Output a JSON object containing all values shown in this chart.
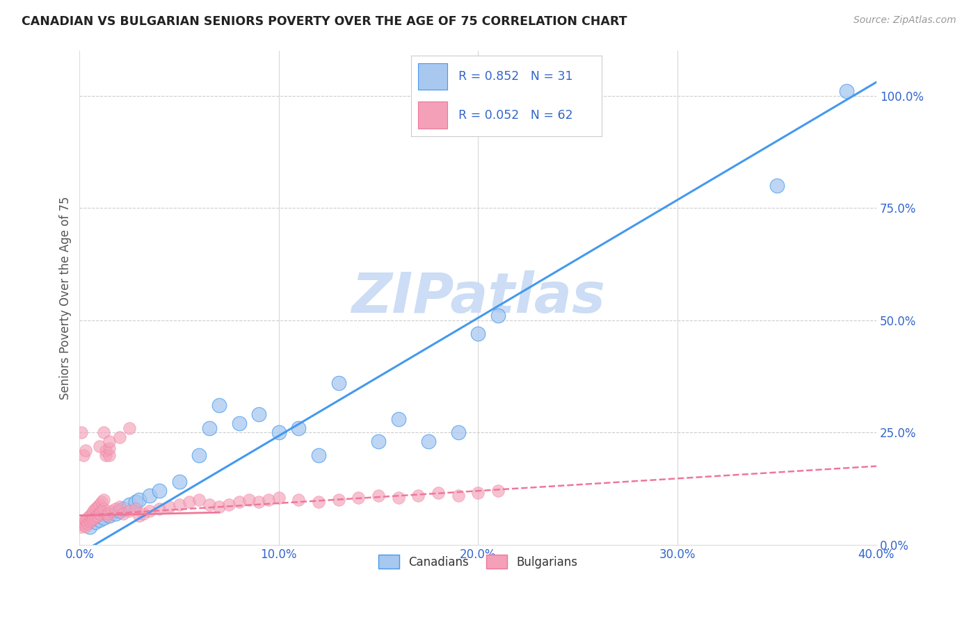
{
  "title": "CANADIAN VS BULGARIAN SENIORS POVERTY OVER THE AGE OF 75 CORRELATION CHART",
  "source": "Source: ZipAtlas.com",
  "ylabel": "Seniors Poverty Over the Age of 75",
  "xlim": [
    0.0,
    0.4
  ],
  "ylim": [
    0.0,
    1.1
  ],
  "xticks": [
    0.0,
    0.1,
    0.2,
    0.3,
    0.4
  ],
  "xticklabels": [
    "0.0%",
    "10.0%",
    "20.0%",
    "30.0%",
    "40.0%"
  ],
  "yticks_right": [
    0.0,
    0.25,
    0.5,
    0.75,
    1.0
  ],
  "yticklabels_right": [
    "0.0%",
    "25.0%",
    "50.0%",
    "75.0%",
    "100.0%"
  ],
  "canadian_color": "#a8c8f0",
  "bulgarian_color": "#f4a0b8",
  "trend_canadian_color": "#4499ee",
  "trend_bulgarian_color": "#ee7799",
  "legend_text_color": "#3366cc",
  "watermark": "ZIPatlas",
  "watermark_color": "#ccddf5",
  "R_canadian": 0.852,
  "N_canadian": 31,
  "R_bulgarian": 0.052,
  "N_bulgarian": 62,
  "canadian_trend_x0": 0.0,
  "canadian_trend_y0": -0.02,
  "canadian_trend_x1": 0.4,
  "canadian_trend_y1": 1.03,
  "bulgarian_trend_x0": 0.0,
  "bulgarian_trend_y0": 0.065,
  "bulgarian_trend_x1": 0.4,
  "bulgarian_trend_y1": 0.175,
  "canadian_x": [
    0.005,
    0.008,
    0.01,
    0.012,
    0.015,
    0.018,
    0.02,
    0.022,
    0.025,
    0.028,
    0.03,
    0.035,
    0.04,
    0.05,
    0.06,
    0.065,
    0.07,
    0.08,
    0.09,
    0.1,
    0.11,
    0.12,
    0.13,
    0.15,
    0.16,
    0.175,
    0.19,
    0.2,
    0.21,
    0.35,
    0.385
  ],
  "canadian_y": [
    0.04,
    0.05,
    0.055,
    0.06,
    0.065,
    0.07,
    0.075,
    0.08,
    0.09,
    0.095,
    0.1,
    0.11,
    0.12,
    0.14,
    0.2,
    0.26,
    0.31,
    0.27,
    0.29,
    0.25,
    0.26,
    0.2,
    0.36,
    0.23,
    0.28,
    0.23,
    0.25,
    0.47,
    0.51,
    0.8,
    1.01
  ],
  "bulgarian_x": [
    0.001,
    0.002,
    0.002,
    0.003,
    0.003,
    0.004,
    0.004,
    0.005,
    0.005,
    0.006,
    0.006,
    0.007,
    0.007,
    0.008,
    0.008,
    0.009,
    0.009,
    0.01,
    0.01,
    0.011,
    0.011,
    0.012,
    0.012,
    0.013,
    0.013,
    0.014,
    0.014,
    0.015,
    0.015,
    0.016,
    0.018,
    0.02,
    0.022,
    0.025,
    0.028,
    0.03,
    0.032,
    0.035,
    0.04,
    0.045,
    0.05,
    0.055,
    0.06,
    0.065,
    0.07,
    0.075,
    0.08,
    0.085,
    0.09,
    0.095,
    0.1,
    0.11,
    0.12,
    0.13,
    0.14,
    0.15,
    0.16,
    0.17,
    0.18,
    0.19,
    0.2,
    0.21
  ],
  "bulgarian_y": [
    0.04,
    0.045,
    0.05,
    0.042,
    0.055,
    0.048,
    0.06,
    0.052,
    0.065,
    0.055,
    0.07,
    0.058,
    0.075,
    0.062,
    0.08,
    0.065,
    0.085,
    0.07,
    0.09,
    0.075,
    0.095,
    0.08,
    0.1,
    0.2,
    0.21,
    0.065,
    0.07,
    0.2,
    0.215,
    0.075,
    0.08,
    0.085,
    0.07,
    0.075,
    0.08,
    0.065,
    0.07,
    0.075,
    0.08,
    0.085,
    0.09,
    0.095,
    0.1,
    0.09,
    0.085,
    0.09,
    0.095,
    0.1,
    0.095,
    0.1,
    0.105,
    0.1,
    0.095,
    0.1,
    0.105,
    0.11,
    0.105,
    0.11,
    0.115,
    0.11,
    0.115,
    0.12
  ],
  "bulgarian_outlier_x": [
    0.001,
    0.002,
    0.003,
    0.01,
    0.012,
    0.015,
    0.02,
    0.025
  ],
  "bulgarian_outlier_y": [
    0.25,
    0.2,
    0.21,
    0.22,
    0.25,
    0.23,
    0.24,
    0.26
  ]
}
